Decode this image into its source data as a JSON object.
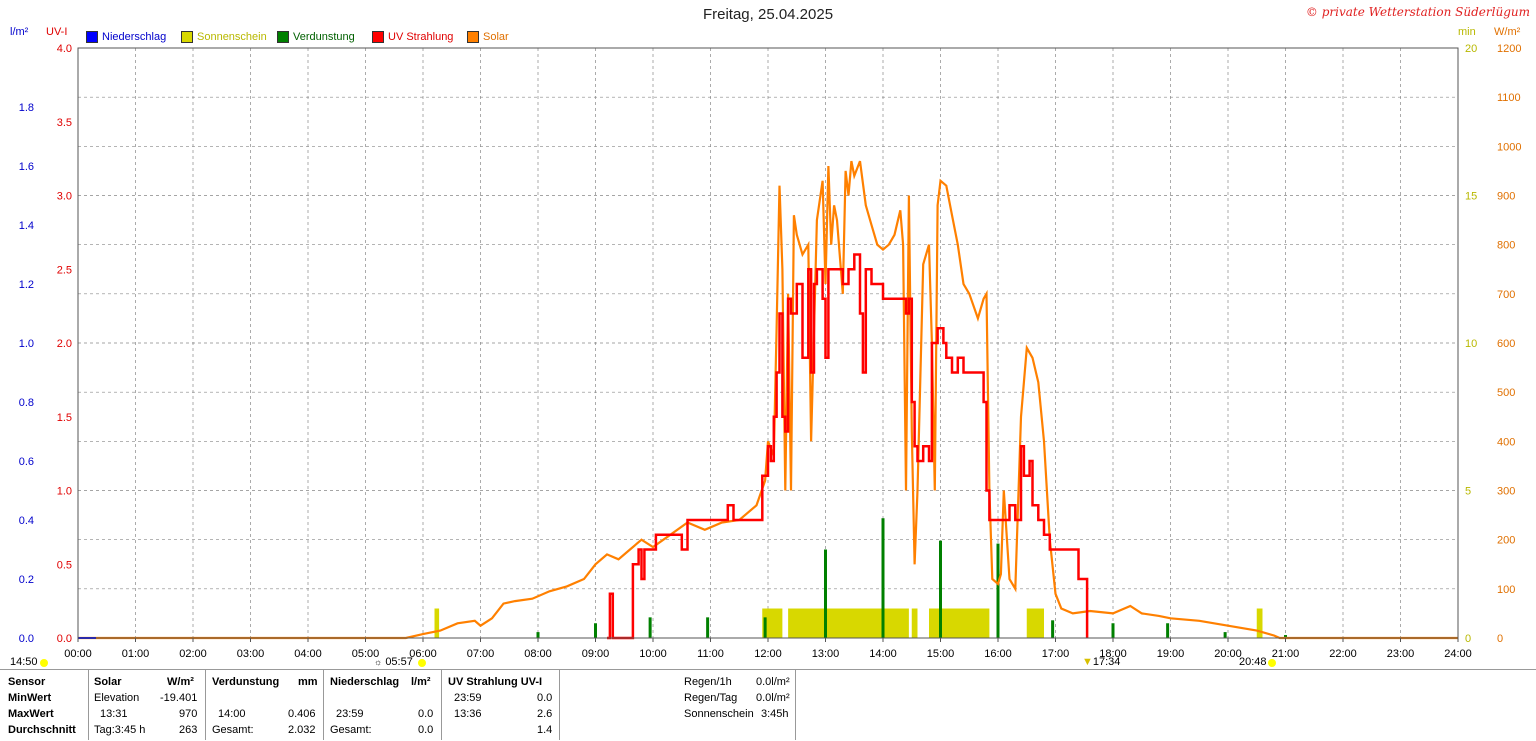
{
  "header": {
    "title": "Freitag, 25.04.2025",
    "copyright": "© private Wetterstation Süderlügum",
    "unit_rain": "l/m²",
    "unit_uv": "UV-I",
    "unit_min": "min",
    "unit_solar": "W/m²"
  },
  "legend": [
    {
      "label": "Niederschlag",
      "color": "#0000ff"
    },
    {
      "label": "Sonnenschein",
      "color": "#d8d800"
    },
    {
      "label": "Verdunstung",
      "color": "#008000"
    },
    {
      "label": "UV Strahlung",
      "color": "#ff0000"
    },
    {
      "label": "Solar",
      "color": "#ff8000"
    }
  ],
  "axes": {
    "rain_ticks": [
      "0.0",
      "0.2",
      "0.4",
      "0.6",
      "0.8",
      "1.0",
      "1.2",
      "1.4",
      "1.6",
      "1.8"
    ],
    "uv_ticks": [
      "0.0",
      "0.5",
      "1.0",
      "1.5",
      "2.0",
      "2.5",
      "3.0",
      "3.5",
      "4.0"
    ],
    "min_ticks": [
      "0",
      "5",
      "10",
      "15",
      "20"
    ],
    "solar_ticks": [
      "0",
      "100",
      "200",
      "300",
      "400",
      "500",
      "600",
      "700",
      "800",
      "900",
      "1000",
      "1100",
      "1200"
    ],
    "time_ticks": [
      "00:00",
      "01:00",
      "02:00",
      "03:00",
      "04:00",
      "05:00",
      "06:00",
      "07:00",
      "08:00",
      "09:00",
      "10:00",
      "11:00",
      "12:00",
      "13:00",
      "14:00",
      "15:00",
      "16:00",
      "17:00",
      "18:00",
      "19:00",
      "20:00",
      "21:00",
      "22:00",
      "23:00",
      "24:00"
    ],
    "markers": {
      "left": "14:50",
      "sunrise": "05:57",
      "sunset": "17:34",
      "right": "20:48"
    }
  },
  "chart_data": {
    "type": "line",
    "title": "Freitag, 25.04.2025",
    "x_unit": "hour",
    "xlim": [
      0,
      24
    ],
    "grid": true,
    "legend_placement": "top-left",
    "y_axes": [
      {
        "name": "l/m²",
        "ylim": [
          0,
          2.0
        ]
      },
      {
        "name": "UV-I",
        "ylim": [
          0,
          4.0
        ]
      },
      {
        "name": "min",
        "ylim": [
          0,
          20
        ]
      },
      {
        "name": "W/m²",
        "ylim": [
          0,
          1200
        ]
      }
    ],
    "series": [
      {
        "name": "Solar",
        "axis": "W/m²",
        "color": "#ff8000",
        "points": [
          [
            0,
            0
          ],
          [
            5.7,
            0
          ],
          [
            6.0,
            8
          ],
          [
            6.3,
            15
          ],
          [
            6.6,
            30
          ],
          [
            6.9,
            35
          ],
          [
            7.0,
            25
          ],
          [
            7.2,
            40
          ],
          [
            7.4,
            70
          ],
          [
            7.6,
            75
          ],
          [
            7.9,
            80
          ],
          [
            8.2,
            95
          ],
          [
            8.5,
            105
          ],
          [
            8.8,
            120
          ],
          [
            9.0,
            150
          ],
          [
            9.2,
            170
          ],
          [
            9.4,
            160
          ],
          [
            9.6,
            180
          ],
          [
            9.8,
            200
          ],
          [
            10.0,
            185
          ],
          [
            10.3,
            210
          ],
          [
            10.6,
            235
          ],
          [
            10.9,
            220
          ],
          [
            11.2,
            235
          ],
          [
            11.5,
            240
          ],
          [
            11.8,
            270
          ],
          [
            11.95,
            320
          ],
          [
            12.0,
            400
          ],
          [
            12.1,
            370
          ],
          [
            12.15,
            630
          ],
          [
            12.2,
            920
          ],
          [
            12.25,
            750
          ],
          [
            12.3,
            300
          ],
          [
            12.35,
            700
          ],
          [
            12.4,
            300
          ],
          [
            12.45,
            860
          ],
          [
            12.5,
            820
          ],
          [
            12.6,
            780
          ],
          [
            12.7,
            800
          ],
          [
            12.75,
            400
          ],
          [
            12.85,
            850
          ],
          [
            12.95,
            930
          ],
          [
            13.0,
            720
          ],
          [
            13.05,
            960
          ],
          [
            13.1,
            800
          ],
          [
            13.15,
            880
          ],
          [
            13.2,
            850
          ],
          [
            13.3,
            700
          ],
          [
            13.35,
            950
          ],
          [
            13.4,
            900
          ],
          [
            13.45,
            970
          ],
          [
            13.5,
            940
          ],
          [
            13.6,
            970
          ],
          [
            13.7,
            880
          ],
          [
            13.8,
            840
          ],
          [
            13.9,
            800
          ],
          [
            14.0,
            790
          ],
          [
            14.1,
            800
          ],
          [
            14.2,
            820
          ],
          [
            14.3,
            870
          ],
          [
            14.35,
            800
          ],
          [
            14.4,
            300
          ],
          [
            14.45,
            900
          ],
          [
            14.5,
            420
          ],
          [
            14.55,
            150
          ],
          [
            14.6,
            300
          ],
          [
            14.7,
            760
          ],
          [
            14.8,
            800
          ],
          [
            14.85,
            600
          ],
          [
            14.9,
            300
          ],
          [
            14.95,
            880
          ],
          [
            15.0,
            930
          ],
          [
            15.1,
            920
          ],
          [
            15.2,
            860
          ],
          [
            15.3,
            800
          ],
          [
            15.4,
            720
          ],
          [
            15.5,
            700
          ],
          [
            15.65,
            650
          ],
          [
            15.75,
            690
          ],
          [
            15.8,
            700
          ],
          [
            15.85,
            300
          ],
          [
            15.9,
            120
          ],
          [
            16.0,
            110
          ],
          [
            16.05,
            130
          ],
          [
            16.1,
            300
          ],
          [
            16.2,
            120
          ],
          [
            16.3,
            100
          ],
          [
            16.4,
            450
          ],
          [
            16.5,
            590
          ],
          [
            16.6,
            570
          ],
          [
            16.7,
            520
          ],
          [
            16.8,
            400
          ],
          [
            16.9,
            200
          ],
          [
            17.0,
            90
          ],
          [
            17.1,
            60
          ],
          [
            17.3,
            50
          ],
          [
            17.6,
            55
          ],
          [
            18.0,
            50
          ],
          [
            18.3,
            65
          ],
          [
            18.5,
            50
          ],
          [
            18.8,
            45
          ],
          [
            19.0,
            40
          ],
          [
            19.5,
            35
          ],
          [
            20.0,
            25
          ],
          [
            20.5,
            15
          ],
          [
            20.8,
            5
          ],
          [
            20.9,
            0
          ],
          [
            24,
            0
          ]
        ]
      },
      {
        "name": "UV Strahlung",
        "axis": "UV-I",
        "color": "#ff0000",
        "points": [
          [
            9.2,
            0
          ],
          [
            9.25,
            0.3
          ],
          [
            9.3,
            0
          ],
          [
            9.6,
            0
          ],
          [
            9.65,
            0.5
          ],
          [
            9.75,
            0.6
          ],
          [
            9.8,
            0.4
          ],
          [
            9.85,
            0.6
          ],
          [
            10.0,
            0.6
          ],
          [
            10.05,
            0.7
          ],
          [
            10.3,
            0.7
          ],
          [
            10.5,
            0.6
          ],
          [
            10.6,
            0.8
          ],
          [
            10.9,
            0.8
          ],
          [
            11.2,
            0.8
          ],
          [
            11.3,
            0.9
          ],
          [
            11.4,
            0.8
          ],
          [
            11.8,
            0.8
          ],
          [
            11.9,
            1.1
          ],
          [
            12.0,
            1.3
          ],
          [
            12.05,
            1.2
          ],
          [
            12.1,
            1.5
          ],
          [
            12.15,
            1.8
          ],
          [
            12.2,
            2.2
          ],
          [
            12.25,
            1.5
          ],
          [
            12.3,
            1.4
          ],
          [
            12.35,
            2.3
          ],
          [
            12.4,
            2.2
          ],
          [
            12.5,
            2.4
          ],
          [
            12.55,
            2.4
          ],
          [
            12.6,
            1.9
          ],
          [
            12.7,
            2.5
          ],
          [
            12.75,
            1.8
          ],
          [
            12.8,
            2.4
          ],
          [
            12.85,
            2.5
          ],
          [
            12.95,
            2.3
          ],
          [
            13.0,
            1.9
          ],
          [
            13.05,
            2.5
          ],
          [
            13.2,
            2.5
          ],
          [
            13.3,
            2.4
          ],
          [
            13.4,
            2.5
          ],
          [
            13.5,
            2.6
          ],
          [
            13.6,
            2.2
          ],
          [
            13.65,
            1.8
          ],
          [
            13.7,
            2.5
          ],
          [
            13.8,
            2.4
          ],
          [
            13.9,
            2.4
          ],
          [
            14.0,
            2.3
          ],
          [
            14.1,
            2.3
          ],
          [
            14.2,
            2.3
          ],
          [
            14.3,
            2.3
          ],
          [
            14.4,
            2.2
          ],
          [
            14.45,
            2.3
          ],
          [
            14.5,
            1.6
          ],
          [
            14.55,
            1.3
          ],
          [
            14.6,
            1.2
          ],
          [
            14.7,
            1.3
          ],
          [
            14.8,
            1.2
          ],
          [
            14.85,
            2.0
          ],
          [
            14.95,
            2.1
          ],
          [
            15.05,
            2.0
          ],
          [
            15.1,
            1.9
          ],
          [
            15.2,
            1.8
          ],
          [
            15.3,
            1.9
          ],
          [
            15.4,
            1.8
          ],
          [
            15.6,
            1.8
          ],
          [
            15.75,
            1.6
          ],
          [
            15.8,
            1.0
          ],
          [
            15.85,
            0.8
          ],
          [
            16.0,
            0.8
          ],
          [
            16.1,
            0.8
          ],
          [
            16.2,
            0.9
          ],
          [
            16.3,
            0.8
          ],
          [
            16.4,
            1.3
          ],
          [
            16.45,
            1.1
          ],
          [
            16.55,
            1.2
          ],
          [
            16.6,
            0.9
          ],
          [
            16.7,
            0.8
          ],
          [
            16.8,
            0.7
          ],
          [
            16.9,
            0.6
          ],
          [
            17.0,
            0.6
          ],
          [
            17.2,
            0.6
          ],
          [
            17.3,
            0.6
          ],
          [
            17.4,
            0.4
          ],
          [
            17.5,
            0.4
          ],
          [
            17.55,
            0
          ]
        ]
      },
      {
        "name": "Sonnenschein",
        "axis": "min",
        "type": "bar",
        "color": "#d8d800",
        "intervals": [
          [
            6.2,
            6.28,
            1
          ],
          [
            11.9,
            12.25,
            1
          ],
          [
            12.35,
            14.45,
            1
          ],
          [
            14.5,
            14.6,
            1
          ],
          [
            14.8,
            15.85,
            1
          ],
          [
            16.5,
            16.8,
            1
          ],
          [
            20.5,
            20.6,
            1
          ]
        ]
      },
      {
        "name": "Verdunstung",
        "axis": "l/m²",
        "type": "bar",
        "color": "#008000",
        "bars": [
          [
            8.0,
            0.02
          ],
          [
            9.0,
            0.05
          ],
          [
            9.95,
            0.07
          ],
          [
            10.95,
            0.07
          ],
          [
            11.95,
            0.07
          ],
          [
            13.0,
            0.3
          ],
          [
            14.0,
            0.406
          ],
          [
            15.0,
            0.33
          ],
          [
            16.0,
            0.32
          ],
          [
            16.95,
            0.06
          ],
          [
            18.0,
            0.05
          ],
          [
            18.95,
            0.05
          ],
          [
            19.95,
            0.02
          ],
          [
            21.0,
            0.01
          ]
        ]
      },
      {
        "name": "Niederschlag",
        "axis": "l/m²",
        "type": "bar",
        "color": "#0000ff",
        "values": [
          0
        ]
      }
    ]
  },
  "stats": {
    "headers": {
      "sensor": "Sensor",
      "solar": "Solar",
      "solar_unit": "W/m²",
      "verdunstung": "Verdunstung",
      "verd_unit": "mm",
      "niederschlag": "Niederschlag",
      "nied_unit": "l/m²",
      "uv": "UV Strahlung UV-I"
    },
    "rows": {
      "min": {
        "label": "MinWert",
        "solar_a": "Elevation",
        "solar_b": "-19.401",
        "uv_time": "23:59",
        "uv_val": "0.0"
      },
      "max": {
        "label": "MaxWert",
        "solar_a": "13:31",
        "solar_b": "970",
        "verd_time": "14:00",
        "verd_val": "0.406",
        "nied_time": "23:59",
        "nied_val": "0.0",
        "uv_time": "13:36",
        "uv_val": "2.6"
      },
      "avg": {
        "label": "Durchschnitt",
        "solar_a": "Tag:3:45 h",
        "solar_b": "263",
        "verd_label": "Gesamt:",
        "verd_val": "2.032",
        "nied_label": "Gesamt:",
        "nied_val": "0.0",
        "uv_val": "1.4"
      }
    },
    "extra": [
      {
        "label": "Regen/1h",
        "value": "0.0l/m²"
      },
      {
        "label": "Regen/Tag",
        "value": "0.0l/m²"
      },
      {
        "label": "Sonnenschein",
        "value": "3:45h"
      }
    ]
  }
}
